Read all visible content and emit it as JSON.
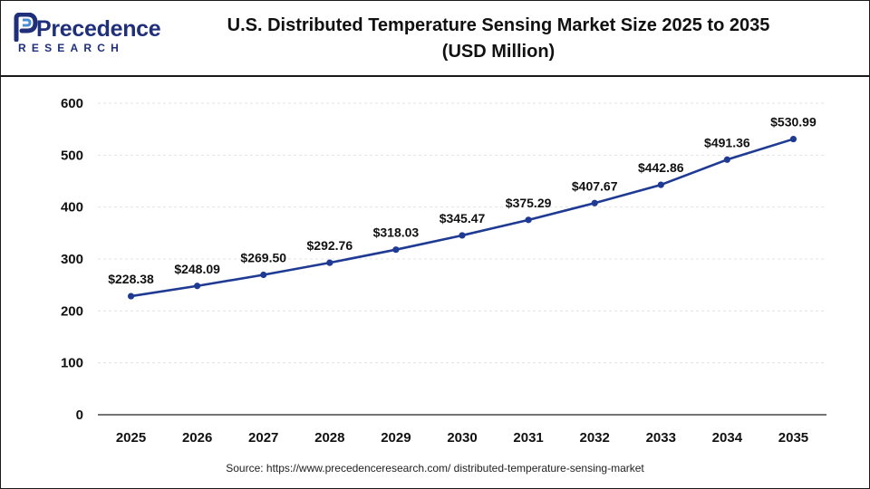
{
  "brand": {
    "name": "Precedence",
    "sub": "RESEARCH",
    "color": "#1f2f7a",
    "accent": "#4a8fd6"
  },
  "title_lines": [
    "U.S. Distributed Temperature Sensing Market Size 2025 to 2035",
    "(USD Million)"
  ],
  "source": "Source: https://www.precedenceresearch.com/ distributed-temperature-sensing-market",
  "chart_data": {
    "type": "line",
    "title": "U.S. Distributed Temperature Sensing Market Size 2025 to 2035 (USD Million)",
    "xlabel": "",
    "ylabel": "",
    "categories": [
      "2025",
      "2026",
      "2027",
      "2028",
      "2029",
      "2030",
      "2031",
      "2032",
      "2033",
      "2034",
      "2035"
    ],
    "series": [
      {
        "values": [
          228.38,
          248.09,
          269.5,
          292.76,
          318.03,
          345.47,
          375.29,
          407.67,
          442.86,
          491.36,
          530.99
        ],
        "labels": [
          "$228.38",
          "$248.09",
          "$269.50",
          "$292.76",
          "$318.03",
          "$345.47",
          "$375.29",
          "$407.67",
          "$442.86",
          "$491.36",
          "$530.99"
        ],
        "color": "#1f3a93"
      }
    ],
    "ylim": [
      0,
      600
    ],
    "yticks": [
      0,
      100,
      200,
      300,
      400,
      500,
      600
    ],
    "grid": true,
    "legend": "none"
  }
}
